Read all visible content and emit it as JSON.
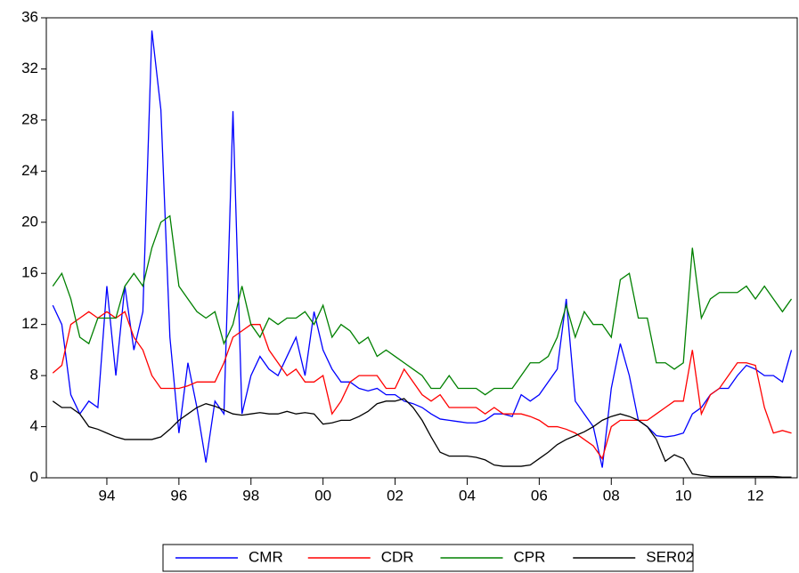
{
  "chart_data": {
    "type": "line",
    "x": [
      1992.5,
      1992.75,
      1993,
      1993.25,
      1993.5,
      1993.75,
      1994,
      1994.25,
      1994.5,
      1994.75,
      1995,
      1995.25,
      1995.5,
      1995.75,
      1996,
      1996.25,
      1996.5,
      1996.75,
      1997,
      1997.25,
      1997.5,
      1997.75,
      1998,
      1998.25,
      1998.5,
      1998.75,
      1999,
      1999.25,
      1999.5,
      1999.75,
      2000,
      2000.25,
      2000.5,
      2000.75,
      2001,
      2001.25,
      2001.5,
      2001.75,
      2002,
      2002.25,
      2002.5,
      2002.75,
      2003,
      2003.25,
      2003.5,
      2003.75,
      2004,
      2004.25,
      2004.5,
      2004.75,
      2005,
      2005.25,
      2005.5,
      2005.75,
      2006,
      2006.25,
      2006.5,
      2006.75,
      2007,
      2007.25,
      2007.5,
      2007.75,
      2008,
      2008.25,
      2008.5,
      2008.75,
      2009,
      2009.25,
      2009.5,
      2009.75,
      2010,
      2010.25,
      2010.5,
      2010.75,
      2011,
      2011.25,
      2011.5,
      2011.75,
      2012,
      2012.25,
      2012.5,
      2012.75,
      2013
    ],
    "series": [
      {
        "name": "CMR",
        "color": "#0000ff",
        "values": [
          13.5,
          12,
          6.5,
          5,
          6,
          5.5,
          15,
          8,
          15,
          10,
          13,
          35,
          28.8,
          11,
          3.5,
          9,
          5.5,
          1.2,
          6,
          5,
          28.7,
          5,
          8,
          9.5,
          8.5,
          8,
          9.5,
          11,
          8,
          13,
          10,
          8.5,
          7.5,
          7.5,
          7,
          6.8,
          7,
          6.5,
          6.5,
          6,
          5.8,
          5.5,
          5,
          4.6,
          4.5,
          4.4,
          4.3,
          4.3,
          4.5,
          5,
          5,
          4.8,
          6.5,
          6,
          6.5,
          7.5,
          8.5,
          14,
          6,
          5,
          4,
          0.8,
          7,
          10.5,
          8,
          4.5,
          4,
          3.3,
          3.2,
          3.3,
          3.5,
          5,
          5.5,
          6.5,
          7,
          7,
          8,
          8.8,
          8.5,
          8,
          8,
          7.5,
          10
        ]
      },
      {
        "name": "CDR",
        "color": "#ff0000",
        "values": [
          8.2,
          8.8,
          12,
          12.5,
          13,
          12.5,
          13,
          12.5,
          13,
          11,
          10,
          8,
          7,
          7,
          7,
          7.2,
          7.5,
          7.5,
          7.5,
          9,
          11,
          11.5,
          12,
          12,
          10,
          9,
          8,
          8.5,
          7.5,
          7.5,
          8,
          5,
          6,
          7.5,
          8,
          8,
          8,
          7,
          7,
          8.5,
          7.5,
          6.5,
          6,
          6.5,
          5.5,
          5.5,
          5.5,
          5.5,
          5,
          5.5,
          5,
          5,
          5,
          4.8,
          4.5,
          4,
          4,
          3.8,
          3.5,
          3,
          2.5,
          1.5,
          4,
          4.5,
          4.5,
          4.5,
          4.5,
          5,
          5.5,
          6,
          6,
          10,
          5,
          6.5,
          7,
          8,
          9,
          9,
          8.8,
          5.5,
          3.5,
          3.7,
          3.5
        ]
      },
      {
        "name": "CPR",
        "color": "#008000",
        "values": [
          15,
          16,
          14,
          11,
          10.5,
          12.5,
          12.5,
          12.5,
          15,
          16,
          15,
          18,
          20,
          20.5,
          15,
          14,
          13,
          12.5,
          13,
          10.5,
          12,
          15,
          12,
          11,
          12.5,
          12,
          12.5,
          12.5,
          13,
          12,
          13.5,
          11,
          12,
          11.5,
          10.5,
          11,
          9.5,
          10,
          9.5,
          9,
          8.5,
          8,
          7,
          7,
          8,
          7,
          7,
          7,
          6.5,
          7,
          7,
          7,
          8,
          9,
          9,
          9.5,
          11,
          13.5,
          11,
          13,
          12,
          12,
          11,
          15.5,
          16,
          12.5,
          12.5,
          9,
          9,
          8.5,
          9,
          18,
          12.5,
          14,
          14.5,
          14.5,
          14.5,
          15,
          14,
          15,
          14,
          13,
          14
        ]
      },
      {
        "name": "SER02",
        "color": "#000000",
        "values": [
          6,
          5.5,
          5.5,
          5,
          4,
          3.8,
          3.5,
          3.2,
          3,
          3,
          3,
          3,
          3.2,
          3.8,
          4.5,
          5,
          5.5,
          5.8,
          5.6,
          5.3,
          5,
          4.9,
          5,
          5.1,
          5,
          5,
          5.2,
          5,
          5.1,
          5,
          4.2,
          4.3,
          4.5,
          4.5,
          4.8,
          5.2,
          5.8,
          6,
          6,
          6.2,
          5.5,
          4.5,
          3.2,
          2,
          1.7,
          1.7,
          1.7,
          1.6,
          1.4,
          1,
          0.9,
          0.9,
          0.9,
          1,
          1.5,
          2,
          2.6,
          3,
          3.3,
          3.6,
          4,
          4.5,
          4.8,
          5,
          4.8,
          4.5,
          4,
          3,
          1.3,
          1.8,
          1.5,
          0.3,
          0.2,
          0.1,
          0.1,
          0.1,
          0.1,
          0.1,
          0.1,
          0.1,
          0.1,
          0.05,
          0.05
        ]
      }
    ],
    "xlim": [
      1992.32,
      2013.16
    ],
    "xticks": [
      {
        "value": 1994,
        "label": "94"
      },
      {
        "value": 1996,
        "label": "96"
      },
      {
        "value": 1998,
        "label": "98"
      },
      {
        "value": 2000,
        "label": "00"
      },
      {
        "value": 2002,
        "label": "02"
      },
      {
        "value": 2004,
        "label": "04"
      },
      {
        "value": 2006,
        "label": "06"
      },
      {
        "value": 2008,
        "label": "08"
      },
      {
        "value": 2010,
        "label": "10"
      },
      {
        "value": 2012,
        "label": "12"
      }
    ],
    "ylim": [
      0,
      36
    ],
    "yticks": [
      0,
      4,
      8,
      12,
      16,
      20,
      24,
      28,
      32,
      36
    ],
    "grid": false,
    "legend": "bottom"
  }
}
